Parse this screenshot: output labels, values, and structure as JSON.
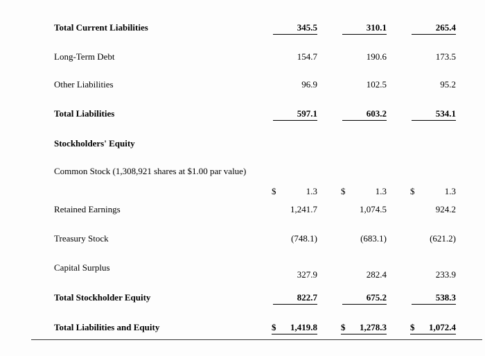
{
  "document": {
    "rows": [
      {
        "label": "Total Current Liabilities",
        "values": [
          "345.5",
          "310.1",
          "265.4"
        ]
      },
      {
        "label": "Long-Term Debt",
        "values": [
          "154.7",
          "190.6",
          "173.5"
        ]
      },
      {
        "label": "Other Liabilities",
        "values": [
          "96.9",
          "102.5",
          "95.2"
        ]
      },
      {
        "label": "Total Liabilities",
        "values": [
          "597.1",
          "603.2",
          "534.1"
        ]
      },
      {
        "label": "Stockholders' Equity",
        "values": []
      },
      {
        "label": "Common Stock (1,308,921 shares at $1.00 par value)",
        "values": []
      },
      {
        "label": "",
        "currency": "$",
        "values": [
          "1.3",
          "1.3",
          "1.3"
        ]
      },
      {
        "label": "Retained Earnings",
        "values": [
          "1,241.7",
          "1,074.5",
          "924.2"
        ]
      },
      {
        "label": "Treasury Stock",
        "values": [
          "(748.1)",
          "(683.1)",
          "(621.2)"
        ]
      },
      {
        "label": "Capital Surplus",
        "values": [
          "327.9",
          "282.4",
          "233.9"
        ]
      },
      {
        "label": "Total Stockholder Equity",
        "values": [
          "822.7",
          "675.2",
          "538.3"
        ]
      },
      {
        "label": "Total Liabilities and Equity",
        "currency": "$",
        "values": [
          "1,419.8",
          "1,278.3",
          "1,072.4"
        ]
      }
    ]
  }
}
